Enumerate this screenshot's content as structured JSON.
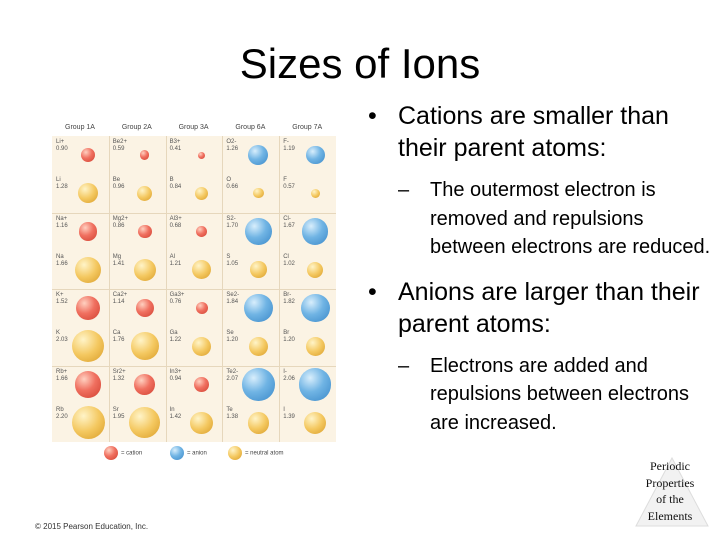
{
  "slide": {
    "title": "Sizes of Ions",
    "bullets": [
      {
        "text": "Cations are smaller than their parent atoms:",
        "sub": [
          "The outermost electron is removed and repulsions between electrons are reduced."
        ]
      },
      {
        "text": "Anions are larger than their parent atoms:",
        "sub": [
          "Electrons are added and repulsions between electrons are increased."
        ]
      }
    ],
    "copyright": "© 2015 Pearson Education, Inc.",
    "logo_text": [
      "Periodic",
      "Properties",
      "of the",
      "Elements"
    ]
  },
  "figure": {
    "groups": [
      "Group 1A",
      "Group 2A",
      "Group 3A",
      "Group 6A",
      "Group 7A"
    ],
    "legend": [
      "= cation",
      "= anion",
      "= neutral atom"
    ],
    "colors": {
      "cation": "#e85a48",
      "anion": "#5aa6dc",
      "neutral": "#f0b840",
      "grid": "#fbf3e4"
    },
    "rows": [
      [
        {
          "label": "Li+",
          "value": "0.90",
          "type": "cation"
        },
        {
          "label": "Be2+",
          "value": "0.59",
          "type": "cation"
        },
        {
          "label": "B3+",
          "value": "0.41",
          "type": "cation"
        },
        {
          "label": "O2-",
          "value": "1.26",
          "type": "anion"
        },
        {
          "label": "F-",
          "value": "1.19",
          "type": "anion"
        }
      ],
      [
        {
          "label": "Li",
          "value": "1.28",
          "type": "neutral"
        },
        {
          "label": "Be",
          "value": "0.96",
          "type": "neutral"
        },
        {
          "label": "B",
          "value": "0.84",
          "type": "neutral"
        },
        {
          "label": "O",
          "value": "0.66",
          "type": "neutral"
        },
        {
          "label": "F",
          "value": "0.57",
          "type": "neutral"
        }
      ],
      [
        {
          "label": "Na+",
          "value": "1.16",
          "type": "cation"
        },
        {
          "label": "Mg2+",
          "value": "0.86",
          "type": "cation"
        },
        {
          "label": "Al3+",
          "value": "0.68",
          "type": "cation"
        },
        {
          "label": "S2-",
          "value": "1.70",
          "type": "anion"
        },
        {
          "label": "Cl-",
          "value": "1.67",
          "type": "anion"
        }
      ],
      [
        {
          "label": "Na",
          "value": "1.66",
          "type": "neutral"
        },
        {
          "label": "Mg",
          "value": "1.41",
          "type": "neutral"
        },
        {
          "label": "Al",
          "value": "1.21",
          "type": "neutral"
        },
        {
          "label": "S",
          "value": "1.05",
          "type": "neutral"
        },
        {
          "label": "Cl",
          "value": "1.02",
          "type": "neutral"
        }
      ],
      [
        {
          "label": "K+",
          "value": "1.52",
          "type": "cation"
        },
        {
          "label": "Ca2+",
          "value": "1.14",
          "type": "cation"
        },
        {
          "label": "Ga3+",
          "value": "0.76",
          "type": "cation"
        },
        {
          "label": "Se2-",
          "value": "1.84",
          "type": "anion"
        },
        {
          "label": "Br-",
          "value": "1.82",
          "type": "anion"
        }
      ],
      [
        {
          "label": "K",
          "value": "2.03",
          "type": "neutral"
        },
        {
          "label": "Ca",
          "value": "1.76",
          "type": "neutral"
        },
        {
          "label": "Ga",
          "value": "1.22",
          "type": "neutral"
        },
        {
          "label": "Se",
          "value": "1.20",
          "type": "neutral"
        },
        {
          "label": "Br",
          "value": "1.20",
          "type": "neutral"
        }
      ],
      [
        {
          "label": "Rb+",
          "value": "1.66",
          "type": "cation"
        },
        {
          "label": "Sr2+",
          "value": "1.32",
          "type": "cation"
        },
        {
          "label": "In3+",
          "value": "0.94",
          "type": "cation"
        },
        {
          "label": "Te2-",
          "value": "2.07",
          "type": "anion"
        },
        {
          "label": "I-",
          "value": "2.06",
          "type": "anion"
        }
      ],
      [
        {
          "label": "Rb",
          "value": "2.20",
          "type": "neutral"
        },
        {
          "label": "Sr",
          "value": "1.95",
          "type": "neutral"
        },
        {
          "label": "In",
          "value": "1.42",
          "type": "neutral"
        },
        {
          "label": "Te",
          "value": "1.38",
          "type": "neutral"
        },
        {
          "label": "I",
          "value": "1.39",
          "type": "neutral"
        }
      ]
    ]
  }
}
